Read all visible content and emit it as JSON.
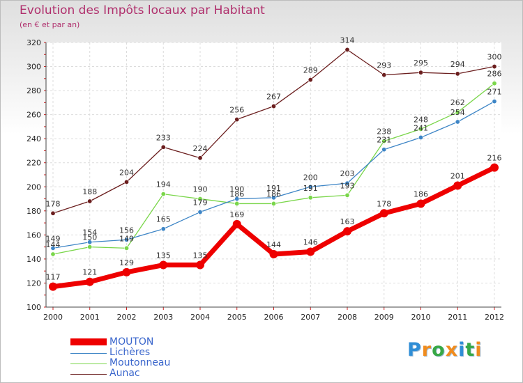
{
  "header": {
    "title": "Evolution des Impôts locaux par Habitant",
    "subtitle": "(en € et par an)"
  },
  "brand": {
    "letters": [
      "P",
      "r",
      "o",
      "x",
      "i",
      "t",
      "i"
    ],
    "colors": [
      "#2f8ed6",
      "#f08c1e",
      "#37a846",
      "#f08c1e",
      "#2f8ed6",
      "#37a846",
      "#f08c1e"
    ]
  },
  "chart_data": {
    "type": "line",
    "title": "Evolution des Impôts locaux par Habitant",
    "subtitle": "(en € et par an)",
    "xlabel": "",
    "ylabel": "",
    "categories": [
      "2000",
      "2001",
      "2002",
      "2003",
      "2004",
      "2005",
      "2006",
      "2007",
      "2008",
      "2009",
      "2010",
      "2011",
      "2012"
    ],
    "ylim": [
      100,
      320
    ],
    "yticks": [
      100,
      120,
      140,
      160,
      180,
      200,
      220,
      240,
      260,
      280,
      300,
      320
    ],
    "grid": true,
    "legend_position": "bottom-left",
    "series": [
      {
        "name": "MOUTON",
        "color": "#ee0000",
        "values": [
          117,
          121,
          129,
          135,
          135,
          169,
          144,
          146,
          163,
          178,
          186,
          201,
          216
        ]
      },
      {
        "name": "Lichères",
        "color": "#3d85c6",
        "values": [
          149,
          154,
          156,
          165,
          179,
          190,
          191,
          200,
          203,
          231,
          241,
          254,
          271
        ]
      },
      {
        "name": "Moutonneau",
        "color": "#7ad64a",
        "values": [
          144,
          150,
          149,
          194,
          190,
          186,
          186,
          191,
          193,
          238,
          248,
          262,
          286
        ]
      },
      {
        "name": "Aunac",
        "color": "#6b1e1e",
        "values": [
          178,
          188,
          204,
          233,
          224,
          256,
          267,
          289,
          314,
          293,
          295,
          294,
          300
        ]
      }
    ]
  }
}
